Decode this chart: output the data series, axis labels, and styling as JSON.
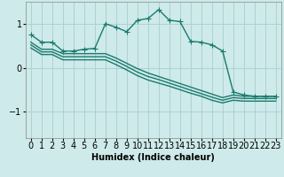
{
  "background_color": "#ceeaea",
  "grid_color": "#a8cece",
  "line_color": "#1a7a6e",
  "xlabel": "Humidex (Indice chaleur)",
  "xlim": [
    -0.5,
    23.5
  ],
  "ylim": [
    -1.6,
    1.5
  ],
  "yticks": [
    -1,
    0,
    1
  ],
  "xtick_labels": [
    "0",
    "1",
    "2",
    "3",
    "4",
    "5",
    "6",
    "7",
    "8",
    "9",
    "10",
    "11",
    "12",
    "13",
    "14",
    "15",
    "16",
    "17",
    "18",
    "19",
    "20",
    "21",
    "22",
    "23"
  ],
  "curve1_x": [
    0,
    1,
    2,
    3,
    4,
    5,
    6,
    7,
    8,
    9,
    10,
    11,
    12,
    13,
    14,
    15,
    16,
    17,
    18,
    19,
    20,
    21,
    22,
    23
  ],
  "curve1_y": [
    0.75,
    0.58,
    0.58,
    0.38,
    0.38,
    0.42,
    0.44,
    1.0,
    0.92,
    0.82,
    1.08,
    1.12,
    1.32,
    1.08,
    1.05,
    0.6,
    0.58,
    0.52,
    0.38,
    -0.55,
    -0.62,
    -0.65,
    -0.65,
    -0.65
  ],
  "curve2_x": [
    0,
    1,
    2,
    3,
    4,
    5,
    6,
    7,
    8,
    9,
    10,
    11,
    12,
    13,
    14,
    15,
    16,
    17,
    18,
    19,
    20,
    21,
    22,
    23
  ],
  "curve2_y": [
    0.58,
    0.42,
    0.42,
    0.32,
    0.32,
    0.32,
    0.32,
    0.32,
    0.22,
    0.1,
    -0.02,
    -0.12,
    -0.2,
    -0.28,
    -0.36,
    -0.44,
    -0.52,
    -0.6,
    -0.68,
    -0.62,
    -0.65,
    -0.65,
    -0.65,
    -0.65
  ],
  "curve3_x": [
    0,
    1,
    2,
    3,
    4,
    5,
    6,
    7,
    8,
    9,
    10,
    11,
    12,
    13,
    14,
    15,
    16,
    17,
    18,
    19,
    20,
    21,
    22,
    23
  ],
  "curve3_y": [
    0.52,
    0.36,
    0.36,
    0.25,
    0.25,
    0.25,
    0.25,
    0.25,
    0.15,
    0.03,
    -0.1,
    -0.2,
    -0.27,
    -0.35,
    -0.43,
    -0.51,
    -0.59,
    -0.67,
    -0.74,
    -0.68,
    -0.7,
    -0.7,
    -0.7,
    -0.7
  ],
  "curve4_x": [
    0,
    1,
    2,
    3,
    4,
    5,
    6,
    7,
    8,
    9,
    10,
    11,
    12,
    13,
    14,
    15,
    16,
    17,
    18,
    19,
    20,
    21,
    22,
    23
  ],
  "curve4_y": [
    0.45,
    0.3,
    0.3,
    0.18,
    0.18,
    0.18,
    0.18,
    0.18,
    0.07,
    -0.05,
    -0.18,
    -0.28,
    -0.35,
    -0.42,
    -0.5,
    -0.58,
    -0.65,
    -0.74,
    -0.8,
    -0.74,
    -0.76,
    -0.76,
    -0.76,
    -0.76
  ],
  "marker": "+",
  "markersize": 4,
  "linewidth": 1.0
}
